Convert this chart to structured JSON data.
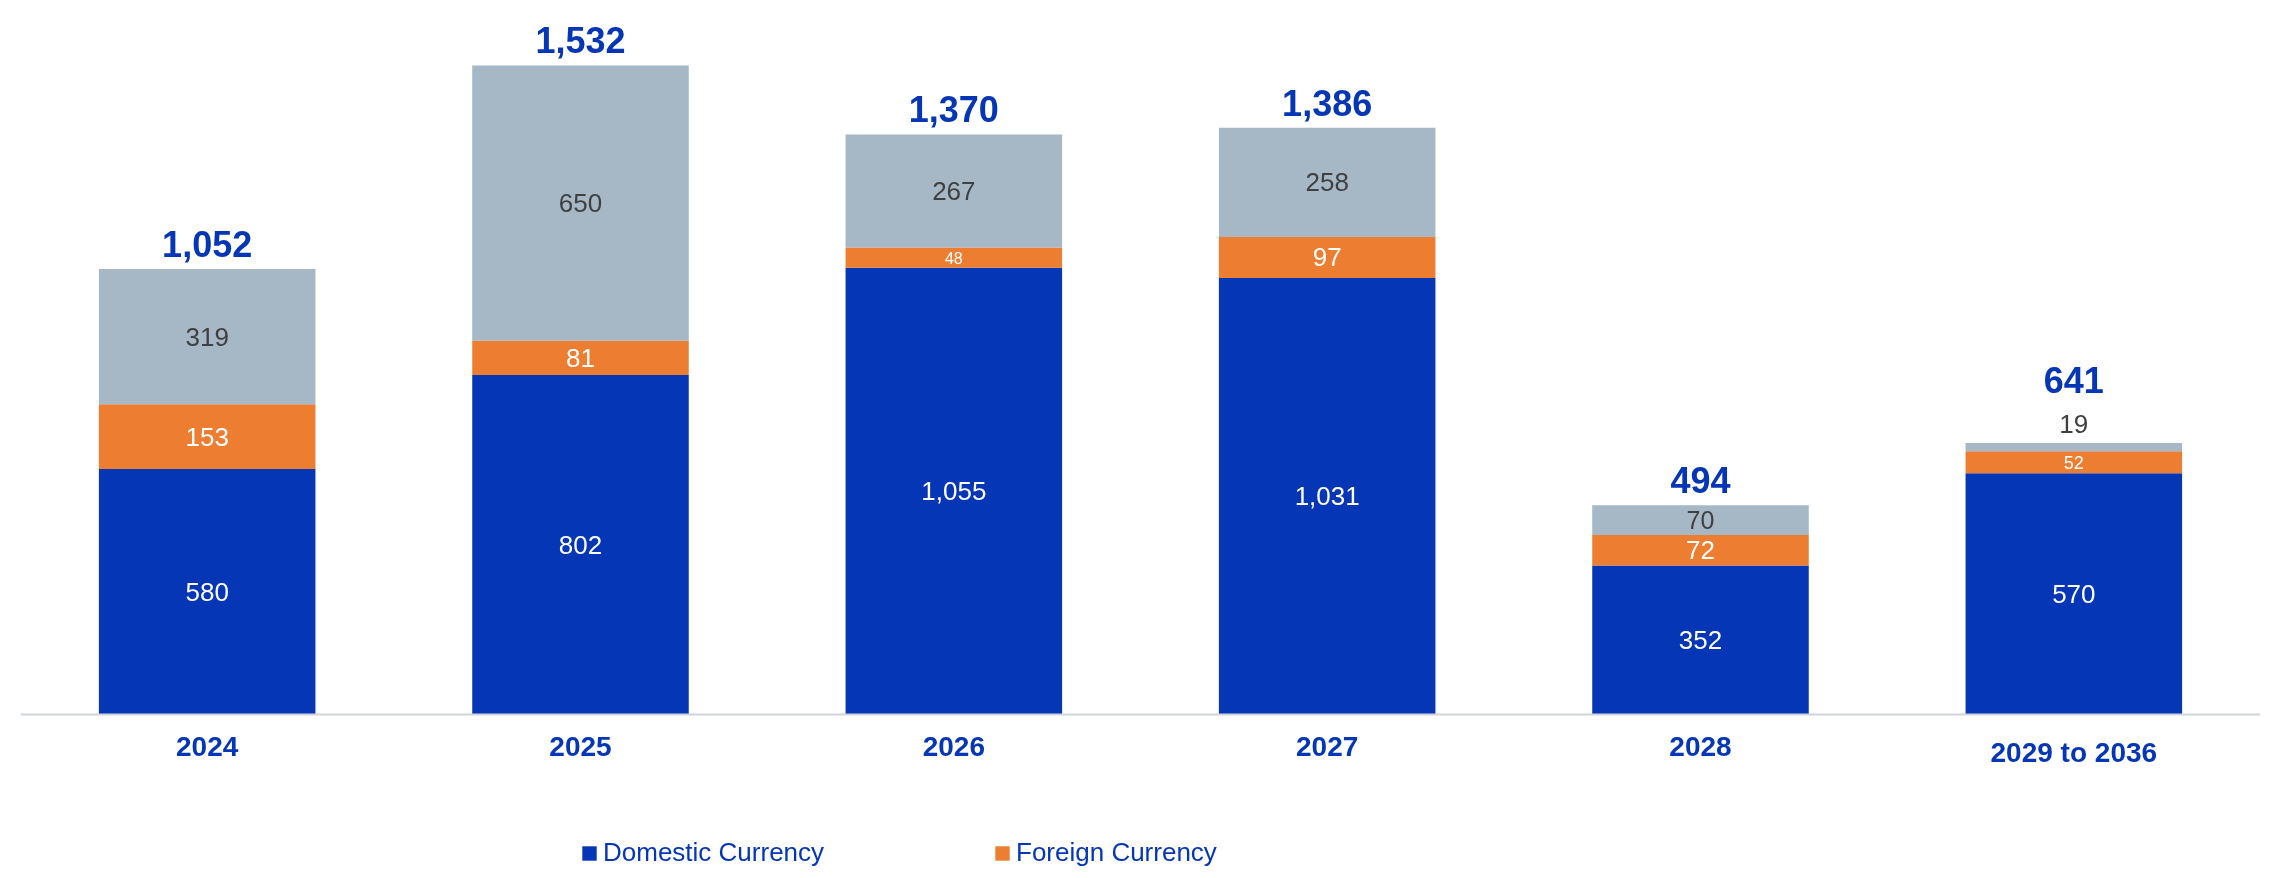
{
  "chart_data": {
    "type": "bar",
    "stacked": true,
    "data_labels": true,
    "grid": false,
    "legend": "bottom",
    "categories": [
      "2024",
      "2025",
      "2026",
      "2027",
      "2028",
      "2029 to 2036"
    ],
    "series": [
      {
        "name": "Domestic Currency",
        "color": "#0536b5",
        "values": [
          580,
          802,
          1055,
          1031,
          352,
          570
        ],
        "value_labels": [
          "580",
          "802",
          "1,055",
          "1,031",
          "352",
          "570"
        ]
      },
      {
        "name": "Foreign Currency",
        "color": "#ed7d31",
        "values": [
          153,
          81,
          48,
          97,
          72,
          52
        ]
      },
      {
        "color": "#a6b7c6",
        "values": [
          319,
          650,
          267,
          258,
          70,
          19
        ]
      }
    ],
    "totals": [
      "1,052",
      "1,532",
      "1,370",
      "1,386",
      "494",
      "641"
    ]
  }
}
